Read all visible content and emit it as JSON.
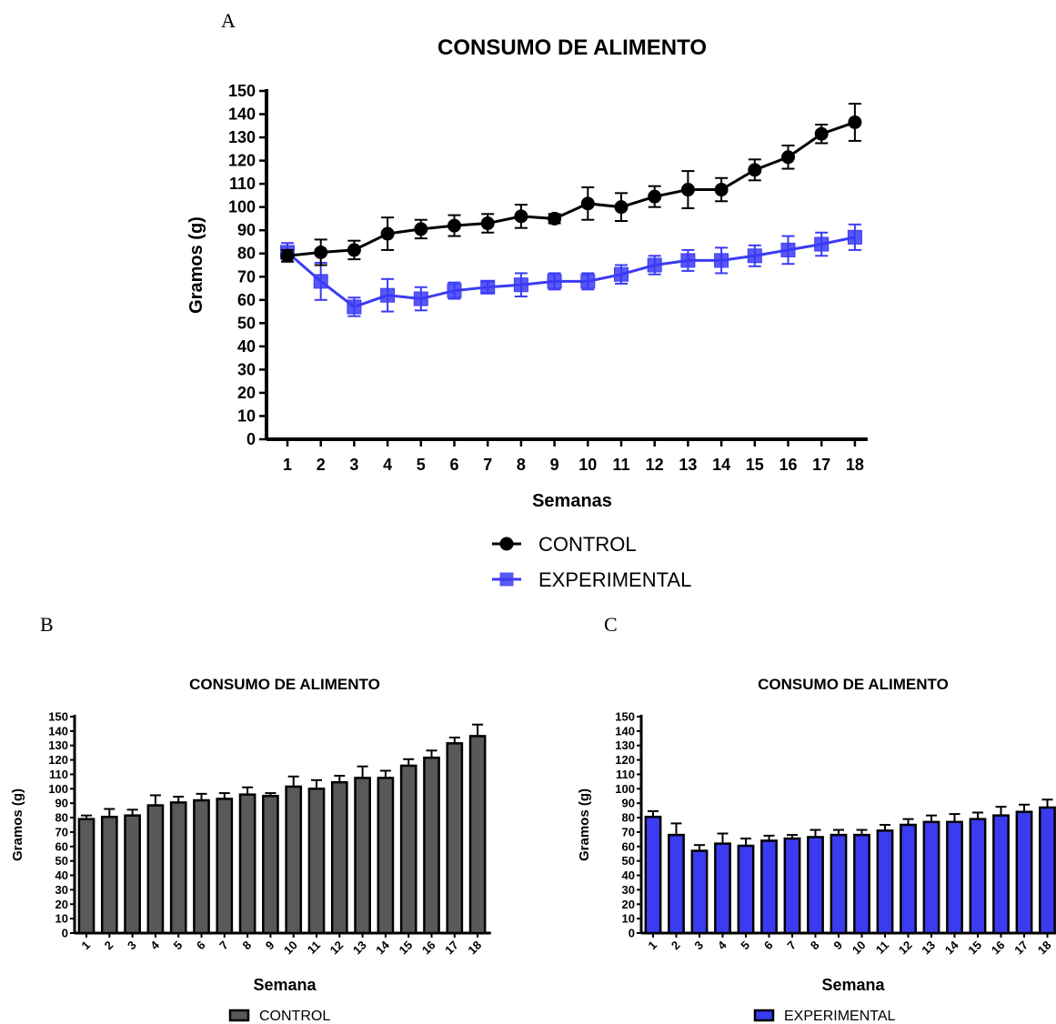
{
  "panels": {
    "a": "A",
    "b": "B",
    "c": "C"
  },
  "colors": {
    "control": "#000000",
    "experimental": "#3b3bf5",
    "control_bar": "#595959",
    "experimental_bar": "#3b3bf0"
  },
  "chart_data": [
    {
      "type": "line",
      "title": "CONSUMO DE ALIMENTO",
      "xlabel": "Semanas",
      "ylabel": "Gramos (g)",
      "ylim": [
        0,
        150
      ],
      "yticks": [
        "0",
        "10",
        "20",
        "30",
        "40",
        "50",
        "60",
        "70",
        "80",
        "90",
        "100",
        "110",
        "120",
        "130",
        "140",
        "150"
      ],
      "x": [
        "1",
        "2",
        "3",
        "4",
        "5",
        "6",
        "7",
        "8",
        "9",
        "10",
        "11",
        "12",
        "13",
        "14",
        "15",
        "16",
        "17",
        "18"
      ],
      "legend_position": "bottom",
      "series": [
        {
          "name": "CONTROL",
          "marker": "circle",
          "values": [
            79,
            80.5,
            81.5,
            88.5,
            90.5,
            92,
            93,
            96,
            95,
            101.5,
            100,
            104.5,
            107.5,
            107.5,
            116,
            121.5,
            131.5,
            136.5
          ],
          "errors": [
            2.5,
            5.5,
            4,
            7,
            4,
            4.5,
            4,
            5,
            2,
            7,
            6,
            4.5,
            8,
            5,
            4.5,
            5,
            4,
            8
          ]
        },
        {
          "name": "EXPERIMENTAL",
          "marker": "square",
          "values": [
            80.5,
            68,
            57,
            62,
            60.5,
            64,
            65.5,
            66.5,
            68,
            68,
            71,
            75,
            77,
            77,
            79,
            81.5,
            84,
            87
          ],
          "errors": [
            4,
            8,
            4,
            7,
            5,
            3.5,
            2.5,
            5,
            3.5,
            3.5,
            4,
            4,
            4.5,
            5.5,
            4.5,
            6,
            5,
            5.5
          ]
        }
      ]
    },
    {
      "type": "bar",
      "title": "CONSUMO DE ALIMENTO",
      "xlabel": "Semana",
      "ylabel": "Gramos (g)",
      "ylim": [
        0,
        150
      ],
      "yticks": [
        "0",
        "10",
        "20",
        "30",
        "40",
        "50",
        "60",
        "70",
        "80",
        "90",
        "100",
        "110",
        "120",
        "130",
        "140",
        "150"
      ],
      "categories": [
        "1",
        "2",
        "3",
        "4",
        "5",
        "6",
        "7",
        "8",
        "9",
        "10",
        "11",
        "12",
        "13",
        "14",
        "15",
        "16",
        "17",
        "18"
      ],
      "legend_position": "bottom",
      "series": [
        {
          "name": "CONTROL",
          "values": [
            79,
            80.5,
            81.5,
            88.5,
            90.5,
            92,
            93,
            96,
            95,
            101.5,
            100,
            104.5,
            107.5,
            107.5,
            116,
            121.5,
            131.5,
            136.5
          ],
          "errors": [
            2.5,
            5.5,
            4,
            7,
            4,
            4.5,
            4,
            5,
            2,
            7,
            6,
            4.5,
            8,
            5,
            4.5,
            5,
            4,
            8
          ]
        }
      ]
    },
    {
      "type": "bar",
      "title": "CONSUMO DE ALIMENTO",
      "xlabel": "Semana",
      "ylabel": "Gramos (g)",
      "ylim": [
        0,
        150
      ],
      "yticks": [
        "0",
        "10",
        "20",
        "30",
        "40",
        "50",
        "60",
        "70",
        "80",
        "90",
        "100",
        "110",
        "120",
        "130",
        "140",
        "150"
      ],
      "categories": [
        "1",
        "2",
        "3",
        "4",
        "5",
        "6",
        "7",
        "8",
        "9",
        "10",
        "11",
        "12",
        "13",
        "14",
        "15",
        "16",
        "17",
        "18"
      ],
      "legend_position": "bottom",
      "series": [
        {
          "name": "EXPERIMENTAL",
          "values": [
            80.5,
            68,
            57,
            62,
            60.5,
            64,
            65.5,
            66.5,
            68,
            68,
            71,
            75,
            77,
            77,
            79,
            81.5,
            84,
            87
          ],
          "errors": [
            4,
            8,
            4,
            7,
            5,
            3.5,
            2.5,
            5,
            3.5,
            3.5,
            4,
            4,
            4.5,
            5.5,
            4.5,
            6,
            5,
            5.5
          ]
        }
      ]
    }
  ]
}
